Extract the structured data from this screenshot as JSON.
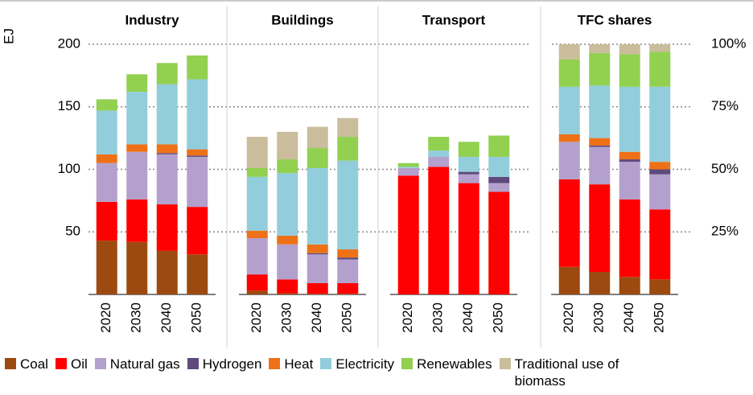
{
  "chart_data": {
    "type": "bar",
    "stacked": true,
    "ylabel": "EJ",
    "ylim": [
      0,
      200
    ],
    "yticks": [
      50,
      100,
      150,
      200
    ],
    "y2lim": [
      0,
      100
    ],
    "y2ticks": [
      {
        "value": 25,
        "label": "25%"
      },
      {
        "value": 50,
        "label": "50%"
      },
      {
        "value": 75,
        "label": "75%"
      },
      {
        "value": 100,
        "label": "100%"
      }
    ],
    "grid": true,
    "series": [
      {
        "name": "Coal",
        "color": "#9c4a0f"
      },
      {
        "name": "Oil",
        "color": "#ff0000"
      },
      {
        "name": "Natural gas",
        "color": "#b4a0cc"
      },
      {
        "name": "Hydrogen",
        "color": "#5e4a7c"
      },
      {
        "name": "Heat",
        "color": "#ee7118"
      },
      {
        "name": "Electricity",
        "color": "#92cddc"
      },
      {
        "name": "Renewables",
        "color": "#92d050"
      },
      {
        "name": "Traditional use of biomass",
        "color": "#c9bd9c"
      }
    ],
    "panels": [
      {
        "title": "Industry",
        "categories": [
          "2020",
          "2030",
          "2040",
          "2050"
        ],
        "values": [
          [
            43,
            42,
            35,
            32
          ],
          [
            31,
            34,
            37,
            38
          ],
          [
            31,
            38,
            40,
            40
          ],
          [
            0,
            0,
            1,
            1
          ],
          [
            7,
            6,
            7,
            5
          ],
          [
            35,
            42,
            48,
            56
          ],
          [
            9,
            14,
            17,
            19
          ],
          [
            0,
            0,
            0,
            0
          ]
        ]
      },
      {
        "title": "Buildings",
        "categories": [
          "2020",
          "2030",
          "2040",
          "2050"
        ],
        "values": [
          [
            3,
            1,
            0.5,
            0.5
          ],
          [
            13,
            11,
            8.5,
            8.5
          ],
          [
            29,
            28,
            23,
            19
          ],
          [
            0,
            0,
            1,
            1.5
          ],
          [
            6,
            7,
            7,
            6.5
          ],
          [
            43,
            50,
            61,
            71
          ],
          [
            7,
            11,
            16,
            19
          ],
          [
            25,
            22,
            17,
            15
          ]
        ]
      },
      {
        "title": "Transport",
        "categories": [
          "2020",
          "2030",
          "2040",
          "2050"
        ],
        "values": [
          [
            0,
            0,
            0,
            0
          ],
          [
            95,
            102,
            89,
            82
          ],
          [
            6,
            8,
            7,
            7
          ],
          [
            0,
            0,
            2,
            5
          ],
          [
            0,
            0,
            0,
            0
          ],
          [
            1,
            5,
            12,
            16
          ],
          [
            3,
            11,
            12,
            17
          ],
          [
            0,
            0,
            0,
            0
          ]
        ]
      },
      {
        "title": "TFC shares",
        "axis": "y2",
        "categories": [
          "2020",
          "2030",
          "2040",
          "2050"
        ],
        "values": [
          [
            11,
            9,
            7,
            6
          ],
          [
            35,
            35,
            31,
            28
          ],
          [
            15,
            15,
            15,
            14
          ],
          [
            0,
            0.5,
            1,
            2
          ],
          [
            3,
            3,
            3,
            3
          ],
          [
            19,
            21,
            26,
            30
          ],
          [
            11,
            13,
            13,
            14
          ],
          [
            6,
            3.5,
            4,
            3
          ]
        ]
      }
    ]
  }
}
